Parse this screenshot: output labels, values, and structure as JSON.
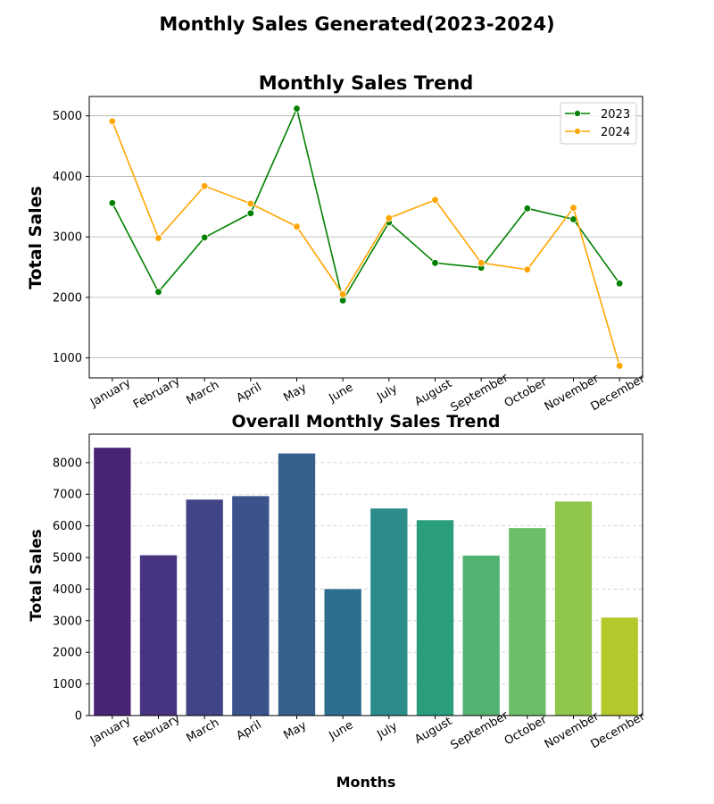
{
  "figure": {
    "suptitle": "Monthly Sales Generated(2023-2024)"
  },
  "chart_data": [
    {
      "type": "line",
      "title": "Monthly Sales Trend",
      "xlabel": "",
      "ylabel": "Total Sales",
      "categories": [
        "January",
        "February",
        "March",
        "April",
        "May",
        "June",
        "July",
        "August",
        "September",
        "October",
        "November",
        "December"
      ],
      "series": [
        {
          "name": "2023",
          "color": "#008000",
          "values": [
            3560,
            2090,
            2990,
            3390,
            5120,
            1950,
            3240,
            2570,
            2490,
            3470,
            3290,
            2230
          ]
        },
        {
          "name": "2024",
          "color": "#FFA500",
          "values": [
            4910,
            2980,
            3840,
            3550,
            3170,
            2050,
            3310,
            3610,
            2570,
            2460,
            3480,
            870
          ]
        }
      ],
      "ylim": [
        670,
        5320
      ],
      "yticks": [
        1000,
        2000,
        3000,
        4000,
        5000
      ],
      "grid": "y",
      "legend": "top-right",
      "marker": "circle"
    },
    {
      "type": "bar",
      "title": "Overall Monthly Sales Trend",
      "xlabel": "Months",
      "ylabel": "Total Sales",
      "categories": [
        "January",
        "February",
        "March",
        "April",
        "May",
        "June",
        "July",
        "August",
        "September",
        "October",
        "November",
        "December"
      ],
      "values": [
        8470,
        5070,
        6830,
        6940,
        8290,
        4000,
        6550,
        6180,
        5060,
        5930,
        6770,
        3100
      ],
      "colors": [
        "#482475",
        "#463480",
        "#414487",
        "#3b528b",
        "#355f8d",
        "#2e6e8e",
        "#2c8c8a",
        "#2a9d7c",
        "#52b274",
        "#6ebe67",
        "#91c64d",
        "#b5c92c"
      ],
      "ylim": [
        0,
        8900
      ],
      "yticks": [
        0,
        1000,
        2000,
        3000,
        4000,
        5000,
        6000,
        7000,
        8000
      ],
      "grid": "y-dashed"
    }
  ]
}
